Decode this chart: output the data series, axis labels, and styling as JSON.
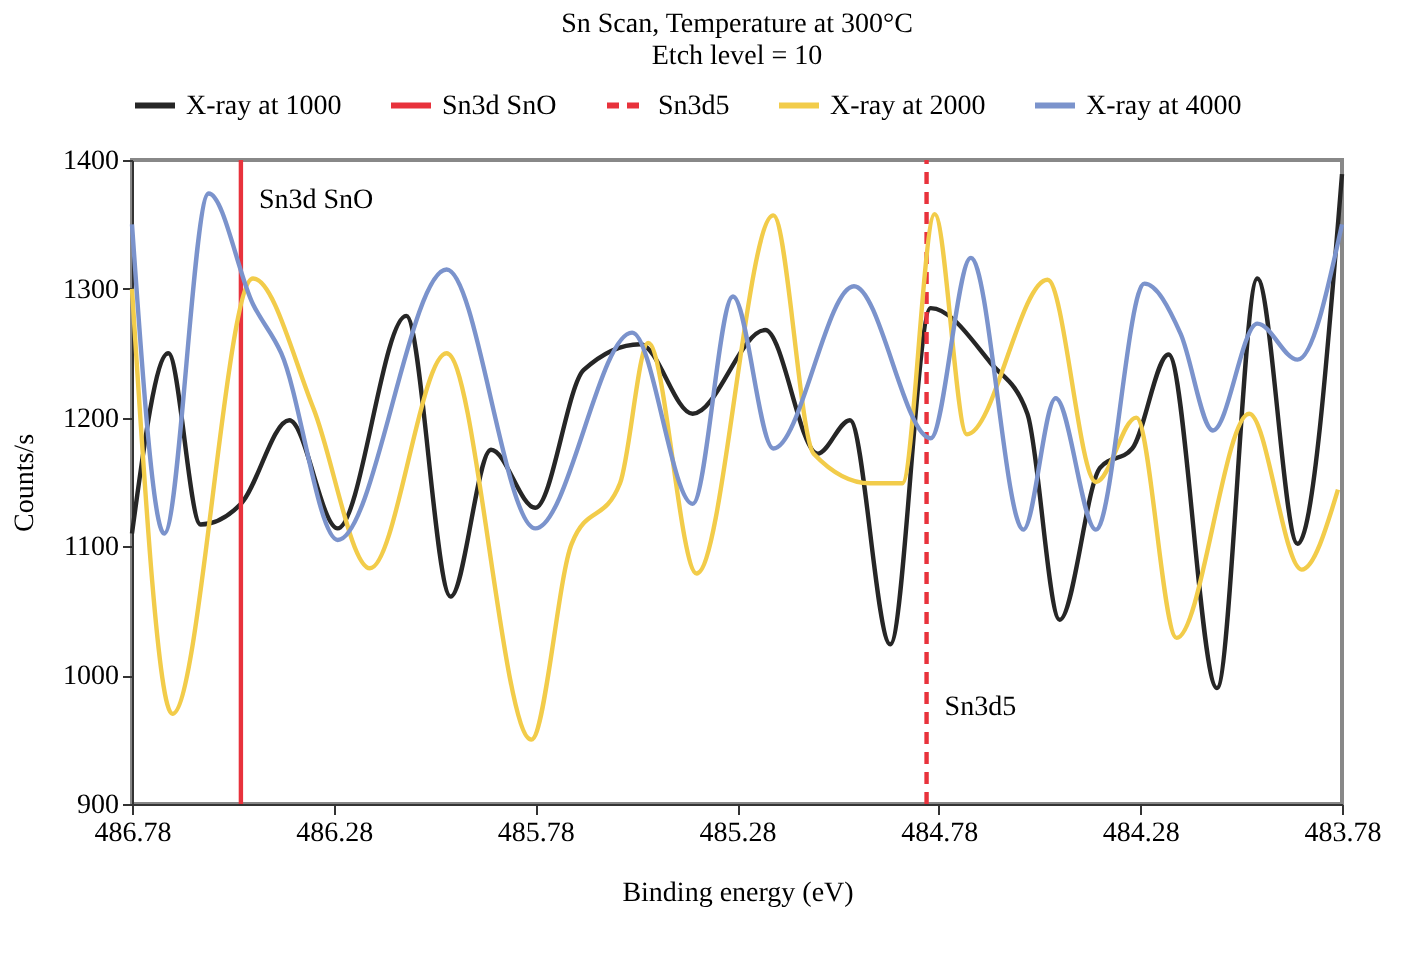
{
  "chart_data": {
    "type": "line",
    "title": "Sn Scan, Temperature at 300°C",
    "subtitle": "Etch level = 10",
    "xlabel": "Binding energy (eV)",
    "ylabel": "Counts/s",
    "xlim": [
      486.78,
      483.78
    ],
    "xticks": [
      486.78,
      486.28,
      485.78,
      485.28,
      484.78,
      484.28,
      483.78
    ],
    "ylim": [
      900,
      1400
    ],
    "yticks": [
      900,
      1000,
      1100,
      1200,
      1300,
      1400
    ],
    "grid": false,
    "legend": "top",
    "marker": "none",
    "line_style": "solid",
    "series": [
      {
        "name": "X-ray at 1000",
        "color": "#262626",
        "x": [
          486.78,
          486.69,
          486.61,
          486.51,
          486.39,
          486.27,
          486.1,
          485.99,
          485.89,
          485.78,
          485.66,
          485.52,
          485.39,
          485.21,
          485.08,
          485.0,
          484.9,
          484.8,
          484.65,
          484.56,
          484.48,
          484.38,
          484.3,
          484.21,
          484.09,
          483.99,
          483.89,
          483.78
        ],
        "values": [
          1110,
          1250,
          1117,
          1133,
          1198,
          1114,
          1279,
          1061,
          1175,
          1130,
          1237,
          1257,
          1203,
          1268,
          1172,
          1198,
          1024,
          1285,
          1242,
          1203,
          1043,
          1161,
          1176,
          1249,
          990,
          1308,
          1102,
          1389
        ]
      },
      {
        "name": "Sn3d SnO",
        "color": "#e8323c",
        "x": [
          486.51,
          486.51
        ],
        "values": [
          900,
          1400
        ]
      },
      {
        "name": "Sn3d5",
        "color": "#e8323c",
        "line_style": "dashed",
        "x": [
          484.81,
          484.81
        ],
        "values": [
          900,
          1400
        ]
      },
      {
        "name": "X-ray at 2000",
        "color": "#f2cc4a",
        "x": [
          486.78,
          486.68,
          486.48,
          486.33,
          486.19,
          486.0,
          485.79,
          485.69,
          485.57,
          485.5,
          485.38,
          485.19,
          485.09,
          484.95,
          484.87,
          484.79,
          484.71,
          484.51,
          484.39,
          484.29,
          484.19,
          484.01,
          483.88,
          483.79
        ],
        "values": [
          1300,
          970,
          1308,
          1207,
          1083,
          1250,
          950,
          1102,
          1149,
          1258,
          1079,
          1357,
          1172,
          1149,
          1149,
          1358,
          1187,
          1307,
          1150,
          1200,
          1029,
          1203,
          1082,
          1144
        ]
      },
      {
        "name": "X-ray at 4000",
        "color": "#7b93cc",
        "x": [
          486.78,
          486.7,
          486.59,
          486.48,
          486.41,
          486.27,
          486.0,
          485.78,
          485.54,
          485.39,
          485.29,
          485.19,
          484.99,
          484.8,
          484.7,
          484.57,
          484.49,
          484.39,
          484.27,
          484.18,
          484.1,
          483.99,
          483.89,
          483.78
        ],
        "values": [
          1350,
          1110,
          1374,
          1288,
          1250,
          1105,
          1315,
          1114,
          1266,
          1133,
          1294,
          1176,
          1302,
          1184,
          1324,
          1113,
          1215,
          1113,
          1304,
          1265,
          1190,
          1273,
          1245,
          1350
        ]
      }
    ],
    "annotations": [
      {
        "text": "Sn3d SnO",
        "x": 486.51,
        "y": 1369
      },
      {
        "text": "Sn3d5",
        "x": 484.81,
        "y": 975
      }
    ]
  }
}
